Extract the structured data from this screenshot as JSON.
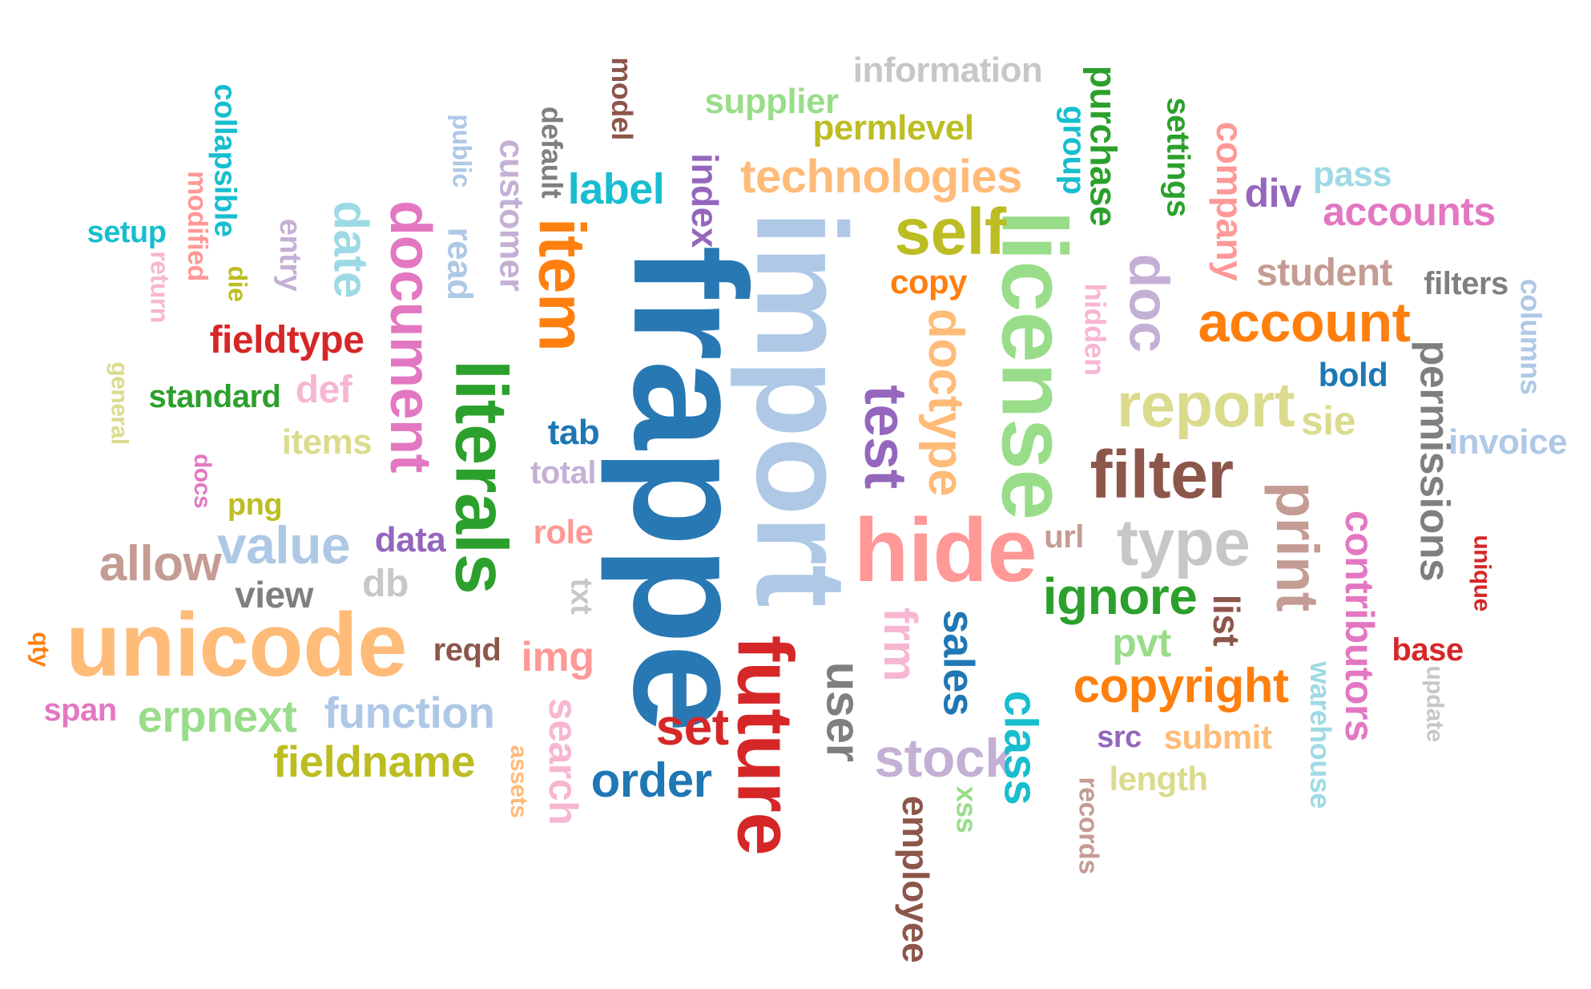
{
  "words": [
    {
      "id": "frappe",
      "text": "frappe",
      "color": "#2878b4",
      "weight": 1.0,
      "vertical": true
    },
    {
      "id": "import",
      "text": "import",
      "color": "#aec8e6",
      "weight": 0.95,
      "vertical": true
    },
    {
      "id": "license",
      "text": "license",
      "color": "#99dd8a",
      "weight": 0.78,
      "vertical": true
    },
    {
      "id": "literals",
      "text": "literals",
      "color": "#2ca02c",
      "weight": 0.72,
      "vertical": true
    },
    {
      "id": "unicode",
      "text": "unicode",
      "color": "#ffbb78",
      "weight": 0.7,
      "vertical": false
    },
    {
      "id": "item",
      "text": "item",
      "color": "#ff7f0e",
      "weight": 0.62,
      "vertical": true
    },
    {
      "id": "future",
      "text": "future",
      "color": "#d62728",
      "weight": 0.68,
      "vertical": true
    },
    {
      "id": "hide",
      "text": "hide",
      "color": "#ff9896",
      "weight": 0.6,
      "vertical": false
    },
    {
      "id": "document",
      "text": "document",
      "color": "#e377c2",
      "weight": 0.58,
      "vertical": true
    },
    {
      "id": "filter",
      "text": "filter",
      "color": "#8c564b",
      "weight": 0.5,
      "vertical": false
    },
    {
      "id": "report",
      "text": "report",
      "color": "#dbdb8d",
      "weight": 0.45,
      "vertical": false
    },
    {
      "id": "test",
      "text": "test",
      "color": "#9467bd",
      "weight": 0.45,
      "vertical": true
    },
    {
      "id": "doc",
      "text": "doc",
      "color": "#c5b0d5",
      "weight": 0.45,
      "vertical": true
    },
    {
      "id": "self",
      "text": "self",
      "color": "#bcbd22",
      "weight": 0.48,
      "vertical": false
    },
    {
      "id": "print",
      "text": "print",
      "color": "#c49c94",
      "weight": 0.45,
      "vertical": true
    },
    {
      "id": "type",
      "text": "type",
      "color": "#c7c7c7",
      "weight": 0.45,
      "vertical": false
    },
    {
      "id": "account",
      "text": "account",
      "color": "#ff7f0e",
      "weight": 0.4,
      "vertical": false
    },
    {
      "id": "doctype",
      "text": "doctype",
      "color": "#ffbb78",
      "weight": 0.38,
      "vertical": true
    },
    {
      "id": "date",
      "text": "date",
      "color": "#9edae5",
      "weight": 0.38,
      "vertical": true
    },
    {
      "id": "technologies",
      "text": "technologies",
      "color": "#ffbb78",
      "weight": 0.34,
      "vertical": false
    },
    {
      "id": "value",
      "text": "value",
      "color": "#aec8e6",
      "weight": 0.38,
      "vertical": false
    },
    {
      "id": "allow",
      "text": "allow",
      "color": "#c49c94",
      "weight": 0.34,
      "vertical": false
    },
    {
      "id": "ignore",
      "text": "ignore",
      "color": "#2ca02c",
      "weight": 0.34,
      "vertical": false
    },
    {
      "id": "copyright",
      "text": "copyright",
      "color": "#ff7f0e",
      "weight": 0.32,
      "vertical": false
    },
    {
      "id": "stock",
      "text": "stock",
      "color": "#c5b0d5",
      "weight": 0.36,
      "vertical": false
    },
    {
      "id": "user",
      "text": "user",
      "color": "#7f7f7f",
      "weight": 0.38,
      "vertical": true
    },
    {
      "id": "sales",
      "text": "sales",
      "color": "#1f77b4",
      "weight": 0.33,
      "vertical": true
    },
    {
      "id": "frm",
      "text": "frm",
      "color": "#f7b6d2",
      "weight": 0.32,
      "vertical": true
    },
    {
      "id": "class",
      "text": "class",
      "color": "#17becf",
      "weight": 0.34,
      "vertical": true
    },
    {
      "id": "contributors",
      "text": "contributors",
      "color": "#e377c2",
      "weight": 0.3,
      "vertical": true
    },
    {
      "id": "permissions",
      "text": "permissions",
      "color": "#7f7f7f",
      "weight": 0.3,
      "vertical": true
    },
    {
      "id": "erpnext",
      "text": "erpnext",
      "color": "#99dd8a",
      "weight": 0.33,
      "vertical": false
    },
    {
      "id": "function",
      "text": "function",
      "color": "#aec8e6",
      "weight": 0.32,
      "vertical": false
    },
    {
      "id": "fieldname",
      "text": "fieldname",
      "color": "#bcbd22",
      "weight": 0.32,
      "vertical": false
    },
    {
      "id": "order",
      "text": "order",
      "color": "#1f77b4",
      "weight": 0.33,
      "vertical": false
    },
    {
      "id": "set",
      "text": "set",
      "color": "#d62728",
      "weight": 0.36,
      "vertical": false
    },
    {
      "id": "search",
      "text": "search",
      "color": "#f7b6d2",
      "weight": 0.3,
      "vertical": true
    },
    {
      "id": "img",
      "text": "img",
      "color": "#ff9896",
      "weight": 0.3,
      "vertical": false
    },
    {
      "id": "employee",
      "text": "employee",
      "color": "#8c564b",
      "weight": 0.28,
      "vertical": true
    },
    {
      "id": "company",
      "text": "company",
      "color": "#ff9896",
      "weight": 0.27,
      "vertical": true
    },
    {
      "id": "purchase",
      "text": "purchase",
      "color": "#2ca02c",
      "weight": 0.27,
      "vertical": true
    },
    {
      "id": "accounts",
      "text": "accounts",
      "color": "#e377c2",
      "weight": 0.28,
      "vertical": false
    },
    {
      "id": "student",
      "text": "student",
      "color": "#c49c94",
      "weight": 0.27,
      "vertical": false
    },
    {
      "id": "fieldtype",
      "text": "fieldtype",
      "color": "#d62728",
      "weight": 0.26,
      "vertical": false
    },
    {
      "id": "customer",
      "text": "customer",
      "color": "#c5b0d5",
      "weight": 0.25,
      "vertical": true
    },
    {
      "id": "label",
      "text": "label",
      "color": "#17becf",
      "weight": 0.28,
      "vertical": false
    },
    {
      "id": "index",
      "text": "index",
      "color": "#9467bd",
      "weight": 0.27,
      "vertical": true
    },
    {
      "id": "supplier",
      "text": "supplier",
      "color": "#99dd8a",
      "weight": 0.24,
      "vertical": false
    },
    {
      "id": "permlevel",
      "text": "permlevel",
      "color": "#bcbd22",
      "weight": 0.24,
      "vertical": false
    },
    {
      "id": "information",
      "text": "information",
      "color": "#c7c7c7",
      "weight": 0.24,
      "vertical": false
    },
    {
      "id": "settings",
      "text": "settings",
      "color": "#2ca02c",
      "weight": 0.22,
      "vertical": true
    },
    {
      "id": "div",
      "text": "div",
      "color": "#9467bd",
      "weight": 0.24,
      "vertical": false
    },
    {
      "id": "pass",
      "text": "pass",
      "color": "#9edae5",
      "weight": 0.24,
      "vertical": false
    },
    {
      "id": "filters",
      "text": "filters",
      "color": "#7f7f7f",
      "weight": 0.22,
      "vertical": false
    },
    {
      "id": "columns",
      "text": "columns",
      "color": "#aec8e6",
      "weight": 0.2,
      "vertical": true
    },
    {
      "id": "bold",
      "text": "bold",
      "color": "#1f77b4",
      "weight": 0.22,
      "vertical": false
    },
    {
      "id": "invoice",
      "text": "invoice",
      "color": "#aec8e6",
      "weight": 0.24,
      "vertical": false
    },
    {
      "id": "sie",
      "text": "sie",
      "color": "#dbdb8d",
      "weight": 0.28,
      "vertical": false
    },
    {
      "id": "unique",
      "text": "unique",
      "color": "#d62728",
      "weight": 0.18,
      "vertical": true
    },
    {
      "id": "base",
      "text": "base",
      "color": "#d62728",
      "weight": 0.22,
      "vertical": false
    },
    {
      "id": "update",
      "text": "update",
      "color": "#c7c7c7",
      "weight": 0.17,
      "vertical": true
    },
    {
      "id": "warehouse",
      "text": "warehouse",
      "color": "#9edae5",
      "weight": 0.2,
      "vertical": true
    },
    {
      "id": "submit",
      "text": "submit",
      "color": "#ffbb78",
      "weight": 0.22,
      "vertical": false
    },
    {
      "id": "src",
      "text": "src",
      "color": "#9467bd",
      "weight": 0.2,
      "vertical": false
    },
    {
      "id": "length",
      "text": "length",
      "color": "#dbdb8d",
      "weight": 0.22,
      "vertical": false
    },
    {
      "id": "records",
      "text": "records",
      "color": "#c49c94",
      "weight": 0.18,
      "vertical": true
    },
    {
      "id": "pvt",
      "text": "pvt",
      "color": "#99dd8a",
      "weight": 0.26,
      "vertical": false
    },
    {
      "id": "list",
      "text": "list",
      "color": "#8c564b",
      "weight": 0.24,
      "vertical": true
    },
    {
      "id": "url",
      "text": "url",
      "color": "#c49c94",
      "weight": 0.22,
      "vertical": false
    },
    {
      "id": "hidden",
      "text": "hidden",
      "color": "#f7b6d2",
      "weight": 0.2,
      "vertical": true
    },
    {
      "id": "group",
      "text": "group",
      "color": "#17becf",
      "weight": 0.2,
      "vertical": true
    },
    {
      "id": "copy",
      "text": "copy",
      "color": "#ff7f0e",
      "weight": 0.22,
      "vertical": false
    },
    {
      "id": "xss",
      "text": "xss",
      "color": "#99dd8a",
      "weight": 0.17,
      "vertical": true
    },
    {
      "id": "model",
      "text": "model",
      "color": "#8c564b",
      "weight": 0.18,
      "vertical": true
    },
    {
      "id": "default",
      "text": "default",
      "color": "#7f7f7f",
      "weight": 0.18,
      "vertical": true
    },
    {
      "id": "public",
      "text": "public",
      "color": "#aec8e6",
      "weight": 0.16,
      "vertical": true
    },
    {
      "id": "read",
      "text": "read",
      "color": "#aec8e6",
      "weight": 0.24,
      "vertical": true
    },
    {
      "id": "entry",
      "text": "entry",
      "color": "#c5b0d5",
      "weight": 0.2,
      "vertical": true
    },
    {
      "id": "collapsible",
      "text": "collapsible",
      "color": "#17becf",
      "weight": 0.2,
      "vertical": true
    },
    {
      "id": "modified",
      "text": "modified",
      "color": "#ff9896",
      "weight": 0.18,
      "vertical": true
    },
    {
      "id": "die",
      "text": "die",
      "color": "#bcbd22",
      "weight": 0.18,
      "vertical": true
    },
    {
      "id": "return",
      "text": "return",
      "color": "#f7b6d2",
      "weight": 0.16,
      "vertical": true
    },
    {
      "id": "setup",
      "text": "setup",
      "color": "#17becf",
      "weight": 0.2,
      "vertical": false
    },
    {
      "id": "general",
      "text": "general",
      "color": "#dbdb8d",
      "weight": 0.16,
      "vertical": true
    },
    {
      "id": "standard",
      "text": "standard",
      "color": "#2ca02c",
      "weight": 0.2,
      "vertical": false
    },
    {
      "id": "def",
      "text": "def",
      "color": "#f7b6d2",
      "weight": 0.24,
      "vertical": false
    },
    {
      "id": "items",
      "text": "items",
      "color": "#dbdb8d",
      "weight": 0.22,
      "vertical": false
    },
    {
      "id": "docs",
      "text": "docs",
      "color": "#e377c2",
      "weight": 0.16,
      "vertical": true
    },
    {
      "id": "png",
      "text": "png",
      "color": "#bcbd22",
      "weight": 0.18,
      "vertical": false
    },
    {
      "id": "data",
      "text": "data",
      "color": "#9467bd",
      "weight": 0.22,
      "vertical": false
    },
    {
      "id": "view",
      "text": "view",
      "color": "#7f7f7f",
      "weight": 0.22,
      "vertical": false
    },
    {
      "id": "db",
      "text": "db",
      "color": "#c7c7c7",
      "weight": 0.22,
      "vertical": false
    },
    {
      "id": "tab",
      "text": "tab",
      "color": "#1f77b4",
      "weight": 0.22,
      "vertical": false
    },
    {
      "id": "total",
      "text": "total",
      "color": "#c5b0d5",
      "weight": 0.2,
      "vertical": false
    },
    {
      "id": "role",
      "text": "role",
      "color": "#ff9896",
      "weight": 0.22,
      "vertical": false
    },
    {
      "id": "txt",
      "text": "txt",
      "color": "#c7c7c7",
      "weight": 0.2,
      "vertical": true
    },
    {
      "id": "reqd",
      "text": "reqd",
      "color": "#8c564b",
      "weight": 0.2,
      "vertical": false
    },
    {
      "id": "qty",
      "text": "qty",
      "color": "#ff7f0e",
      "weight": 0.16,
      "vertical": true
    },
    {
      "id": "span",
      "text": "span",
      "color": "#e377c2",
      "weight": 0.2,
      "vertical": false
    },
    {
      "id": "assets",
      "text": "assets",
      "color": "#ffbb78",
      "weight": 0.16,
      "vertical": true
    }
  ]
}
